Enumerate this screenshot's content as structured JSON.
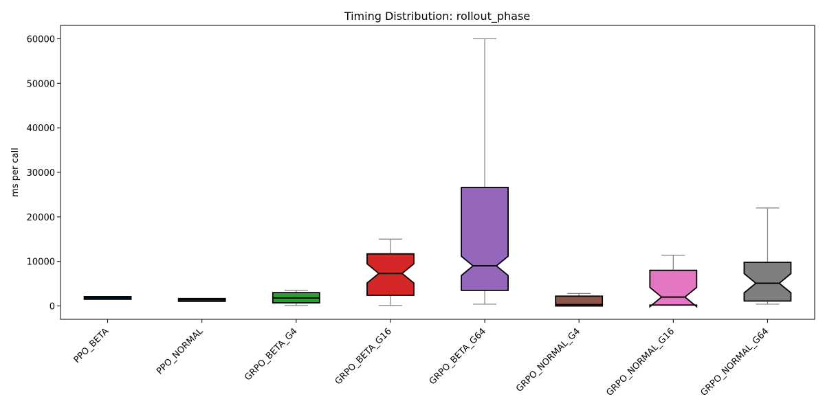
{
  "chart_data": {
    "type": "box",
    "title": "Timing Distribution: rollout_phase",
    "xlabel": "",
    "ylabel": "ms per call",
    "ylim": [
      -3000,
      63000
    ],
    "yticks": [
      0,
      10000,
      20000,
      30000,
      40000,
      50000,
      60000
    ],
    "notched": true,
    "grid": false,
    "categories": [
      "PPO_BETA",
      "PPO_NORMAL",
      "GRPO_BETA_G4",
      "GRPO_BETA_G16",
      "GRPO_BETA_G64",
      "GRPO_NORMAL_G4",
      "GRPO_NORMAL_G16",
      "GRPO_NORMAL_G64"
    ],
    "series": [
      {
        "category": "PPO_BETA",
        "color": "#1f77b4",
        "whisker_low": 1750,
        "q1": 1750,
        "median": 1800,
        "q3": 1850,
        "whisker_high": 1850
      },
      {
        "category": "PPO_NORMAL",
        "color": "#ff7f0e",
        "whisker_low": 1250,
        "q1": 1250,
        "median": 1350,
        "q3": 1450,
        "whisker_high": 1450
      },
      {
        "category": "GRPO_BETA_G4",
        "color": "#2ca02c",
        "whisker_low": 100,
        "q1": 700,
        "median": 1800,
        "q3": 3000,
        "whisker_high": 3500
      },
      {
        "category": "GRPO_BETA_G16",
        "color": "#d62728",
        "whisker_low": 100,
        "q1": 2400,
        "median": 7300,
        "q3": 11700,
        "whisker_high": 15000
      },
      {
        "category": "GRPO_BETA_G64",
        "color": "#9467bd",
        "whisker_low": 400,
        "q1": 3500,
        "median": 9000,
        "q3": 26600,
        "whisker_high": 60000
      },
      {
        "category": "GRPO_NORMAL_G4",
        "color": "#8c564b",
        "whisker_low": 0,
        "q1": 200,
        "median": 300,
        "q3": 2200,
        "whisker_high": 2800
      },
      {
        "category": "GRPO_NORMAL_G16",
        "color": "#e377c2",
        "whisker_low": 150,
        "q1": 200,
        "median": 2000,
        "q3": 8000,
        "whisker_high": 11400
      },
      {
        "category": "GRPO_NORMAL_G64",
        "color": "#7f7f7f",
        "whisker_low": 400,
        "q1": 1100,
        "median": 5100,
        "q3": 9800,
        "whisker_high": 22000
      }
    ],
    "colors": {
      "whisker": "#808080",
      "box_edge": "#000000",
      "axes": "#000000"
    }
  }
}
